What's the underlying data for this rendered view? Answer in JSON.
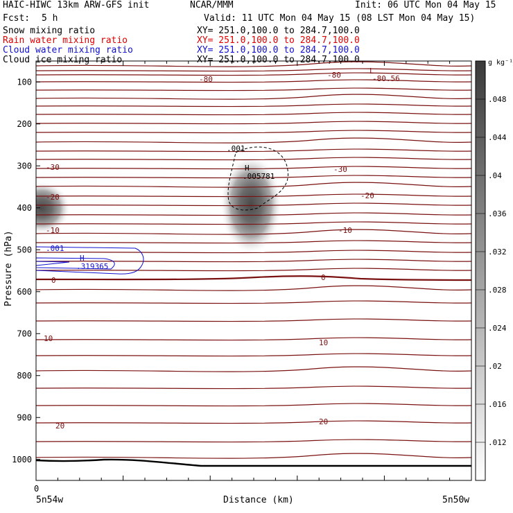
{
  "header": {
    "title_left": "HAIC-HIWC 13km ARW-GFS init",
    "org": "NCAR/MMM",
    "init": "Init: 06 UTC Mon 04 May 15",
    "fcst_label": "Fcst:",
    "fcst_value": "5 h",
    "valid": "Valid: 11 UTC Mon 04 May 15 (08 LST Mon 04 May 15)",
    "fields": [
      {
        "name": "Snow mixing ratio",
        "xy": "XY= 251.0,100.0 to 284.7,100.0",
        "color": "#000000"
      },
      {
        "name": "Rain water mixing ratio",
        "xy": "XY= 251.0,100.0 to 284.7,100.0",
        "color": "#e00000"
      },
      {
        "name": "Cloud water mixing ratio",
        "xy": "XY= 251.0,100.0 to 284.7,100.0",
        "color": "#1010d0"
      },
      {
        "name": "Cloud ice mixing ratio",
        "xy": "XY= 251.0,100.0 to 284.7,100.0",
        "color": "#000000"
      }
    ]
  },
  "chart_data": {
    "type": "heatmap",
    "xlabel": "Distance (km)",
    "ylabel": "Pressure (hPa)",
    "x_start_tick": "0",
    "x_left_label": "5n54w",
    "x_right_label": "5n50w",
    "ylim": [
      1050,
      50
    ],
    "yticks": [
      100,
      200,
      300,
      400,
      500,
      600,
      700,
      800,
      900,
      1000
    ],
    "colorbar": {
      "unit": "g kg⁻¹",
      "ticks": [
        ".012",
        ".016",
        ".02",
        ".024",
        ".028",
        ".032",
        ".036",
        ".04",
        ".044",
        ".048"
      ]
    },
    "shaded_maxima": [
      {
        "field": "Cloud ice mixing ratio",
        "center_distance_frac": 0.48,
        "pressure": 370
      },
      {
        "field": "Cloud ice mixing ratio",
        "center_distance_frac": 0.02,
        "pressure": 400
      }
    ],
    "temperature_contours": {
      "labels": [
        "-80",
        "-80",
        "-30",
        "-30",
        "-20",
        "-20",
        "-10",
        "-10",
        "0",
        "0",
        "10",
        "10",
        "20",
        "20"
      ],
      "low_label": "L",
      "low_value": "-80.56"
    },
    "ice_contour": {
      "level_label": ".001",
      "max_label": "H",
      "max_value": ".005781"
    },
    "cloud_water_contour": {
      "level_label": ".001",
      "max_label": "H",
      "max_value": ".319365"
    }
  }
}
